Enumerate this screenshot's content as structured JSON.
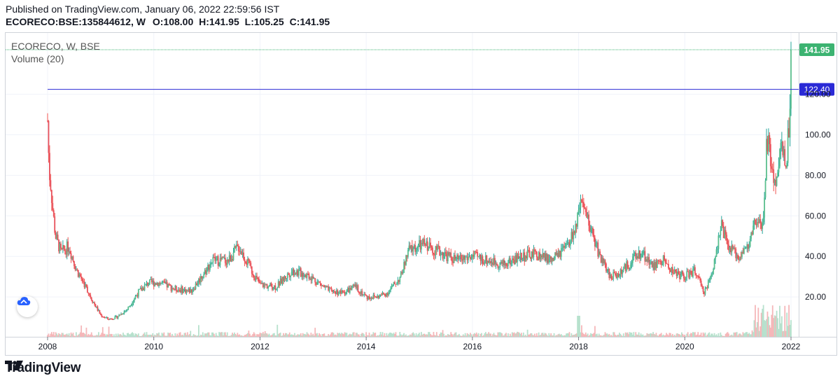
{
  "header": {
    "published": "Published on TradingView.com, January 06, 2022 22:59:56 IST",
    "symbol": "ECORECO:BSE:135844612, W",
    "o_label": "O:",
    "o_value": "108.00",
    "h_label": "H:",
    "h_value": "141.95",
    "l_label": "L:",
    "l_value": "105.25",
    "c_label": "C:",
    "c_value": "141.95"
  },
  "legend": {
    "title": "ECORECO, W, BSE",
    "volume": "Volume (20)"
  },
  "footer": {
    "brand": "TradingView"
  },
  "colors": {
    "up": "#26a69a",
    "down": "#ef5350",
    "up_fill": "#5bbf8e",
    "down_fill": "#e8505b",
    "vol_up": "#b7e1cd",
    "vol_down": "#f5b7b9",
    "hline": "#2a2ad6",
    "last_price": "#3cb371"
  },
  "chart_data": {
    "type": "candlestick",
    "interval": "W",
    "x_ticks": [
      "2008",
      "2010",
      "2012",
      "2014",
      "2016",
      "2018",
      "2020",
      "2022"
    ],
    "y_ticks": [
      "20.00",
      "40.00",
      "60.00",
      "80.00",
      "100.00",
      "120.00"
    ],
    "ylim": [
      0,
      150
    ],
    "xlim": [
      2008.0,
      2022.05
    ],
    "horizontal_line": {
      "value": 122.4,
      "label": "122.40"
    },
    "last_price": {
      "value": 141.95,
      "label": "141.95"
    },
    "price_path": [
      [
        2008.0,
        107
      ],
      [
        2008.03,
        82
      ],
      [
        2008.06,
        75
      ],
      [
        2008.1,
        62
      ],
      [
        2008.15,
        50
      ],
      [
        2008.25,
        42
      ],
      [
        2008.4,
        45
      ],
      [
        2008.55,
        33
      ],
      [
        2008.7,
        26
      ],
      [
        2008.85,
        18
      ],
      [
        2009.0,
        11
      ],
      [
        2009.15,
        9
      ],
      [
        2009.3,
        10
      ],
      [
        2009.5,
        14
      ],
      [
        2009.7,
        22
      ],
      [
        2009.9,
        27
      ],
      [
        2010.1,
        27
      ],
      [
        2010.4,
        24
      ],
      [
        2010.7,
        23
      ],
      [
        2010.9,
        30
      ],
      [
        2011.1,
        38
      ],
      [
        2011.4,
        38
      ],
      [
        2011.6,
        45
      ],
      [
        2011.8,
        35
      ],
      [
        2012.0,
        26
      ],
      [
        2012.3,
        25
      ],
      [
        2012.6,
        33
      ],
      [
        2012.9,
        31
      ],
      [
        2013.1,
        27
      ],
      [
        2013.3,
        23
      ],
      [
        2013.55,
        22
      ],
      [
        2013.8,
        25
      ],
      [
        2014.0,
        20
      ],
      [
        2014.2,
        20
      ],
      [
        2014.4,
        22
      ],
      [
        2014.65,
        30
      ],
      [
        2014.8,
        43
      ],
      [
        2015.1,
        46
      ],
      [
        2015.4,
        42
      ],
      [
        2015.7,
        38
      ],
      [
        2016.0,
        40
      ],
      [
        2016.3,
        38
      ],
      [
        2016.6,
        36
      ],
      [
        2016.9,
        40
      ],
      [
        2017.2,
        41
      ],
      [
        2017.5,
        38
      ],
      [
        2017.8,
        45
      ],
      [
        2017.95,
        55
      ],
      [
        2018.05,
        65
      ],
      [
        2018.2,
        56
      ],
      [
        2018.4,
        40
      ],
      [
        2018.6,
        30
      ],
      [
        2018.8,
        32
      ],
      [
        2019.0,
        38
      ],
      [
        2019.2,
        42
      ],
      [
        2019.4,
        35
      ],
      [
        2019.6,
        38
      ],
      [
        2019.8,
        32
      ],
      [
        2020.0,
        30
      ],
      [
        2020.2,
        33
      ],
      [
        2020.35,
        22
      ],
      [
        2020.5,
        30
      ],
      [
        2020.6,
        45
      ],
      [
        2020.7,
        55
      ],
      [
        2020.8,
        45
      ],
      [
        2021.0,
        40
      ],
      [
        2021.2,
        45
      ],
      [
        2021.35,
        58
      ],
      [
        2021.45,
        52
      ],
      [
        2021.5,
        68
      ],
      [
        2021.55,
        100
      ],
      [
        2021.6,
        90
      ],
      [
        2021.7,
        72
      ],
      [
        2021.8,
        95
      ],
      [
        2021.9,
        85
      ],
      [
        2021.97,
        108
      ],
      [
        2022.0,
        141.95
      ]
    ]
  }
}
